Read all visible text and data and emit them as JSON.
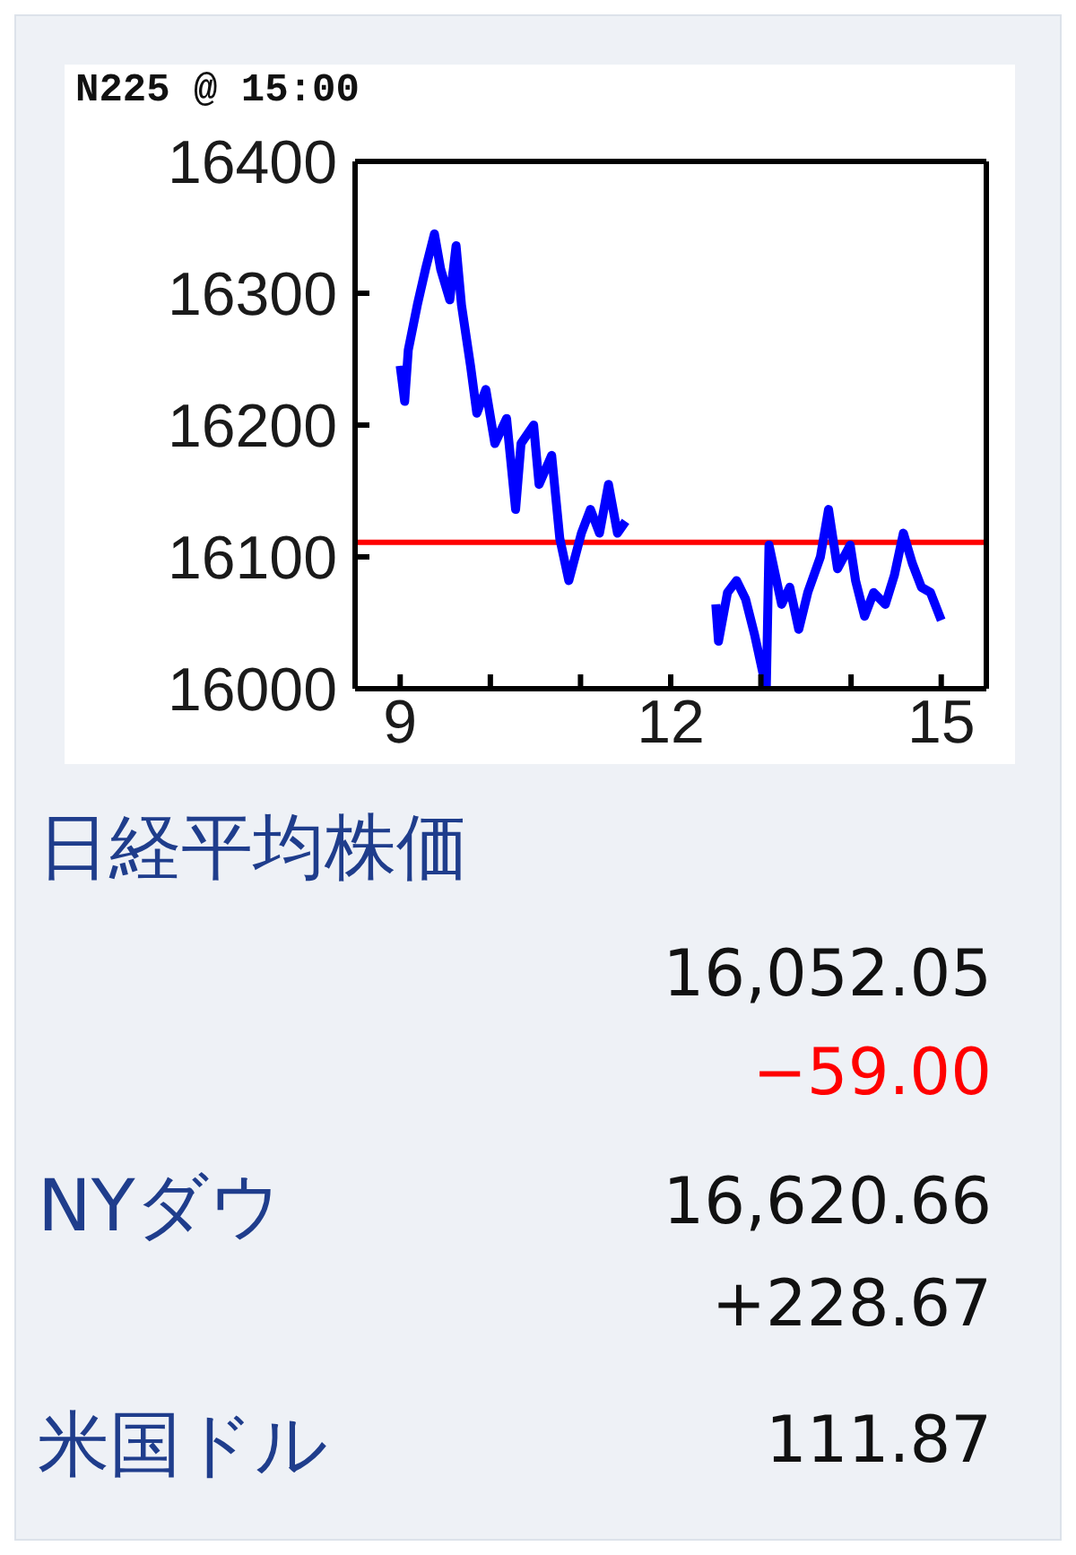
{
  "chart_data": [
    {
      "type": "line",
      "title": "N225 @ 15:00",
      "x": [
        9.0,
        9.05,
        9.09,
        9.19,
        9.28,
        9.38,
        9.45,
        9.55,
        9.62,
        9.68,
        9.78,
        9.85,
        9.95,
        10.05,
        10.18,
        10.28,
        10.34,
        10.48,
        10.54,
        10.68,
        10.77,
        10.87,
        11.01,
        11.11,
        11.21,
        11.31,
        11.41,
        11.5,
        12.0,
        12.5,
        12.53,
        12.63,
        12.73,
        12.83,
        12.93,
        13.06,
        13.09,
        13.23,
        13.32,
        13.42,
        13.52,
        13.66,
        13.75,
        13.85,
        13.99,
        14.05,
        14.15,
        14.25,
        14.38,
        14.48,
        14.58,
        14.68,
        14.78,
        14.88,
        15.0
      ],
      "series": [
        {
          "color": "#0000ff",
          "values": [
            16245,
            16218,
            16257,
            16291,
            16318,
            16345,
            16318,
            16295,
            16336,
            16291,
            16245,
            16209,
            16227,
            16186,
            16205,
            16136,
            16186,
            16200,
            16155,
            16177,
            16114,
            16082,
            16118,
            16136,
            16118,
            16155,
            16118,
            16127,
            null,
            16064,
            16036,
            16073,
            16082,
            16068,
            16041,
            16000,
            16109,
            16064,
            16077,
            16045,
            16073,
            16100,
            16136,
            16091,
            16109,
            16082,
            16055,
            16073,
            16064,
            16086,
            16118,
            16095,
            16077,
            16073,
            16052
          ]
        }
      ],
      "xlim": [
        8.5,
        15.5
      ],
      "xticks": [
        9,
        {
          "value": 10,
          "label": null
        },
        {
          "value": 11,
          "label": null
        },
        12,
        {
          "value": 13,
          "label": null
        },
        {
          "value": 14,
          "label": null
        },
        15
      ],
      "ylim": [
        16000,
        16400
      ],
      "yticks": [
        16000,
        16100,
        16200,
        16300,
        16400
      ],
      "ref_lines": [
        {
          "axis": "y",
          "value": 16111,
          "color": "#ff0000"
        }
      ],
      "marker": "none"
    },
    {
      "type": "other",
      "annotations": [
        "日経平均株価",
        "16,052.05",
        "−59.00",
        "NYダウ",
        "16,620.66",
        "+228.67",
        "米国ドル",
        "111.87"
      ]
    }
  ]
}
